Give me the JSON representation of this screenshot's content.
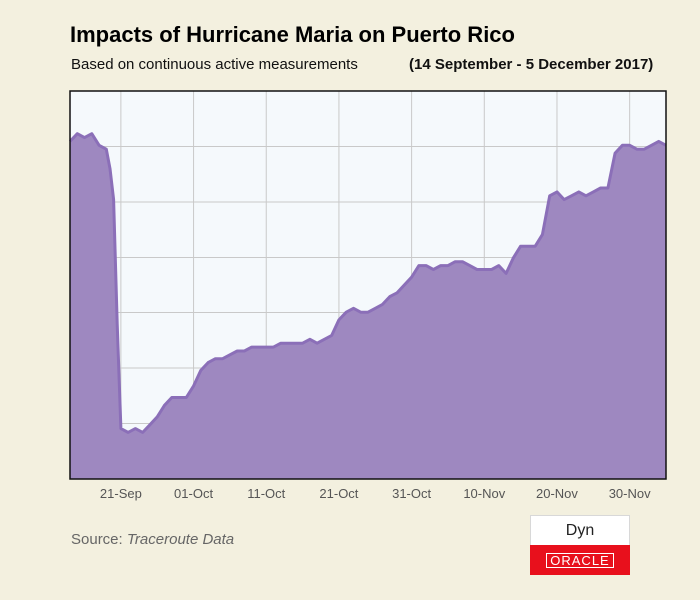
{
  "colors": {
    "background": "#f3f0df",
    "plot_background": "#f5f9fc",
    "grid": "#c9c9c9",
    "area_fill": "#9e88c0",
    "line": "#8b6fb8",
    "brand_red": "#e8101c"
  },
  "source": {
    "label": "Source:",
    "value": "Traceroute Data"
  },
  "logo": {
    "top_text": "Dyn",
    "bottom_text": "ORACLE"
  },
  "chart_data": {
    "type": "area",
    "title": "Impacts of Hurricane Maria on Puerto Rico",
    "subtitle": "Based on continuous active measurements",
    "date_range": "(14 September - 5 December 2017)",
    "xlabel": "",
    "ylabel": "",
    "x_unit": "days since 14 Sep 2017",
    "xlim": [
      0,
      82
    ],
    "ylim": [
      0,
      100
    ],
    "grid": true,
    "x_ticks": [
      {
        "label": "21-Sep",
        "x": 7
      },
      {
        "label": "01-Oct",
        "x": 17
      },
      {
        "label": "11-Oct",
        "x": 27
      },
      {
        "label": "21-Oct",
        "x": 37
      },
      {
        "label": "31-Oct",
        "x": 47
      },
      {
        "label": "10-Nov",
        "x": 57
      },
      {
        "label": "20-Nov",
        "x": 67
      },
      {
        "label": "30-Nov",
        "x": 77
      }
    ],
    "y_gridlines": [
      0,
      14.3,
      28.6,
      42.9,
      57.1,
      71.4,
      85.7,
      100
    ],
    "series": [
      {
        "name": "Active measurements",
        "x": [
          0,
          1,
          2,
          3,
          4,
          5,
          5.5,
          6,
          6.5,
          7,
          8,
          9,
          10,
          11,
          12,
          13,
          14,
          15,
          16,
          17,
          18,
          19,
          20,
          21,
          22,
          23,
          24,
          25,
          26,
          27,
          28,
          29,
          30,
          31,
          32,
          33,
          34,
          35,
          36,
          37,
          38,
          39,
          40,
          41,
          42,
          43,
          44,
          45,
          46,
          47,
          48,
          49,
          50,
          51,
          52,
          53,
          54,
          55,
          56,
          57,
          58,
          59,
          60,
          61,
          62,
          63,
          64,
          65,
          66,
          67,
          68,
          69,
          70,
          71,
          72,
          73,
          74,
          75,
          76,
          77,
          78,
          79,
          80,
          81,
          82
        ],
        "values": [
          87,
          89,
          88,
          89,
          86,
          85,
          80,
          72,
          40,
          13,
          12,
          13,
          12,
          14,
          16,
          19,
          21,
          21,
          21,
          24,
          28,
          30,
          31,
          31,
          32,
          33,
          33,
          34,
          34,
          34,
          34,
          35,
          35,
          35,
          35,
          36,
          35,
          36,
          37,
          41,
          43,
          44,
          43,
          43,
          44,
          45,
          47,
          48,
          50,
          52,
          55,
          55,
          54,
          55,
          55,
          56,
          56,
          55,
          54,
          54,
          54,
          55,
          53,
          57,
          60,
          60,
          60,
          63,
          73,
          74,
          72,
          73,
          74,
          73,
          74,
          75,
          75,
          84,
          86,
          86,
          85,
          85,
          86,
          87,
          86
        ]
      }
    ]
  }
}
